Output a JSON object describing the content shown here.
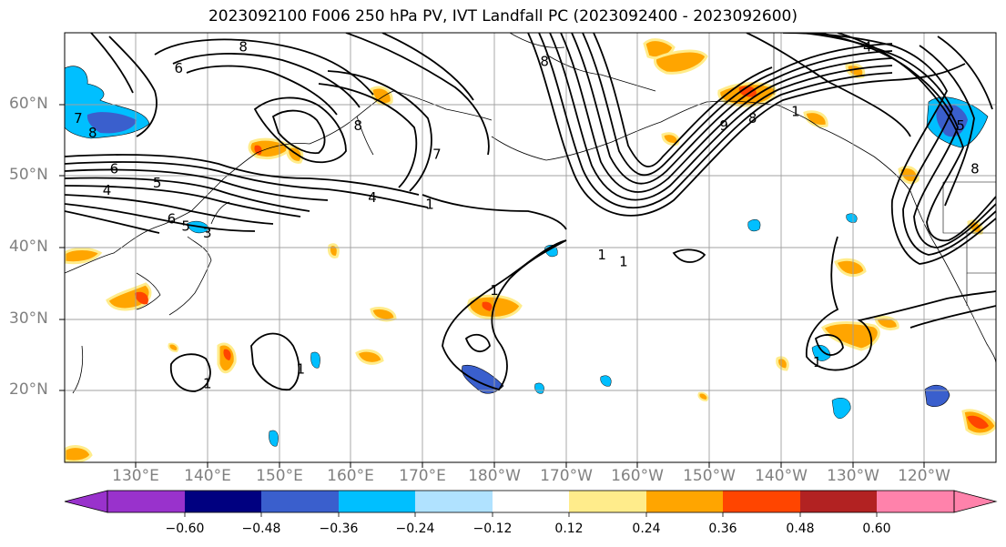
{
  "title": "2023092100 F006 250 hPa PV, IVT Landfall PC (2023092400 - 2023092600)",
  "lat_labels": [
    "60°N",
    "50°N",
    "40°N",
    "30°N",
    "20°N"
  ],
  "lon_labels": [
    "130°E",
    "140°E",
    "150°E",
    "160°E",
    "170°E",
    "180°W",
    "170°W",
    "160°W",
    "150°W",
    "140°W",
    "130°W",
    "120°W"
  ],
  "colorbar": {
    "ticks": [
      "−0.60",
      "−0.48",
      "−0.36",
      "−0.24",
      "−0.12",
      "0.12",
      "0.24",
      "0.36",
      "0.48",
      "0.60"
    ],
    "colors": [
      "#9932cc",
      "#000080",
      "#3a5fcd",
      "#00bfff",
      "#b0e2ff",
      "#ffffff",
      "#ffec8b",
      "#ffa500",
      "#ff4500",
      "#b22222",
      "#ff82ab"
    ]
  },
  "contour_labels": [
    {
      "text": "8",
      "lon": 124,
      "lat": 56
    },
    {
      "text": "7",
      "lon": 122,
      "lat": 58
    },
    {
      "text": "6",
      "lon": 127,
      "lat": 51
    },
    {
      "text": "4",
      "lon": 126,
      "lat": 48
    },
    {
      "text": "5",
      "lon": 133,
      "lat": 49
    },
    {
      "text": "6",
      "lon": 135,
      "lat": 44
    },
    {
      "text": "5",
      "lon": 137,
      "lat": 43
    },
    {
      "text": "3",
      "lon": 140,
      "lat": 42
    },
    {
      "text": "4",
      "lon": 163,
      "lat": 47
    },
    {
      "text": "8",
      "lon": 161,
      "lat": 57
    },
    {
      "text": "7",
      "lon": 172,
      "lat": 53
    },
    {
      "text": "1",
      "lon": 171,
      "lat": 46
    },
    {
      "text": "6",
      "lon": 136,
      "lat": 65
    },
    {
      "text": "8",
      "lon": 145,
      "lat": 68
    },
    {
      "text": "8",
      "lon": 187,
      "lat": 66
    },
    {
      "text": "1",
      "lon": 180,
      "lat": 34
    },
    {
      "text": "1",
      "lon": 195,
      "lat": 39
    },
    {
      "text": "1",
      "lon": 198,
      "lat": 38
    },
    {
      "text": "1",
      "lon": 140,
      "lat": 21
    },
    {
      "text": "1",
      "lon": 153,
      "lat": 23
    },
    {
      "text": "9",
      "lon": 212,
      "lat": 57
    },
    {
      "text": "8",
      "lon": 216,
      "lat": 58
    },
    {
      "text": "1",
      "lon": 222,
      "lat": 59
    },
    {
      "text": "4",
      "lon": 232,
      "lat": 68
    },
    {
      "text": "5",
      "lon": 245,
      "lat": 57
    },
    {
      "text": "8",
      "lon": 247,
      "lat": 51
    },
    {
      "text": "1",
      "lon": 225,
      "lat": 24
    }
  ]
}
